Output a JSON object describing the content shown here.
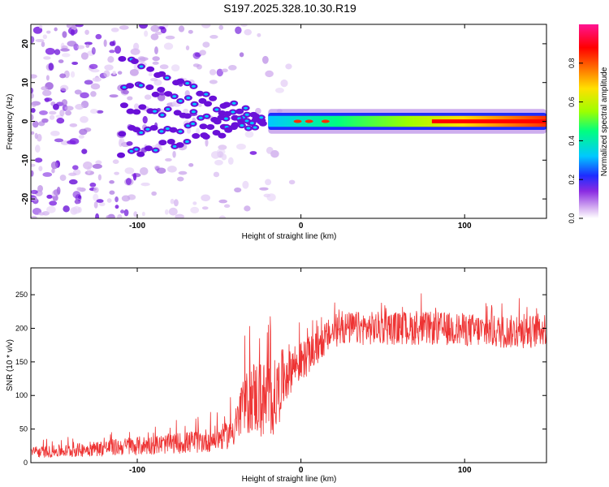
{
  "figure": {
    "title": "S197.2025.328.10.30.R19"
  },
  "chart_data": [
    {
      "type": "heatmap",
      "title": "S197.2025.328.10.30.R19",
      "xlabel": "Height of straight line (km)",
      "ylabel": "Frequency (Hz)",
      "xlim": [
        -165,
        150
      ],
      "ylim": [
        -25,
        25
      ],
      "x_ticks": [
        -100,
        0,
        100
      ],
      "y_ticks": [
        -20,
        -10,
        0,
        10,
        20
      ],
      "x_tick_labels": [
        "-100",
        "0",
        "100"
      ],
      "y_tick_labels": [
        "-20",
        "-10",
        "0",
        "10",
        "20"
      ],
      "colorbar": {
        "label": "Normalized spectral amplitude",
        "range": [
          0,
          1
        ],
        "ticks": [
          0.0,
          0.2,
          0.4,
          0.6,
          0.8
        ],
        "tick_labels": [
          "0.0",
          "0.2",
          "0.4",
          "0.6",
          "0.8"
        ],
        "stops": [
          "#ffffff",
          "#d9b6f2",
          "#8a2be2",
          "#1e2cff",
          "#00c8ff",
          "#00ff80",
          "#9cff00",
          "#ffe000",
          "#ff6a00",
          "#ff0000",
          "#ff1493"
        ]
      },
      "description_features": {
        "ridge_center_hz": 0,
        "ridge_start_km": -20,
        "ridge_end_km": 150,
        "peak_amplitude_region_km": [
          80,
          150
        ]
      }
    },
    {
      "type": "line",
      "xlabel": "Height of straight line (km)",
      "ylabel": "SNR (10 * v/v)",
      "xlim": [
        -165,
        150
      ],
      "ylim": [
        0,
        290
      ],
      "x_ticks": [
        -100,
        0,
        100
      ],
      "y_ticks": [
        0,
        50,
        100,
        150,
        200,
        250
      ],
      "x_tick_labels": [
        "-100",
        "0",
        "100"
      ],
      "y_tick_labels": [
        "0",
        "50",
        "100",
        "150",
        "200",
        "250"
      ],
      "color": "#ee3333",
      "series": [
        {
          "name": "SNR",
          "x": [
            -165,
            -140,
            -120,
            -100,
            -80,
            -60,
            -45,
            -40,
            -35,
            -30,
            -25,
            -20,
            -15,
            -10,
            -5,
            0,
            5,
            10,
            15,
            20,
            25,
            30,
            40,
            60,
            80,
            100,
            120,
            140,
            150
          ],
          "y": [
            15,
            18,
            22,
            25,
            28,
            32,
            40,
            55,
            80,
            100,
            95,
            90,
            100,
            130,
            145,
            150,
            160,
            170,
            185,
            195,
            200,
            200,
            200,
            200,
            200,
            198,
            195,
            195,
            200
          ],
          "noise_amplitude": [
            8,
            10,
            12,
            14,
            15,
            18,
            20,
            30,
            45,
            55,
            60,
            60,
            55,
            45,
            35,
            30,
            28,
            25,
            25,
            25,
            25,
            25,
            25,
            25,
            25,
            25,
            25,
            25,
            25
          ]
        }
      ]
    }
  ]
}
